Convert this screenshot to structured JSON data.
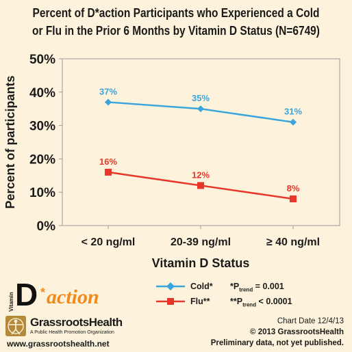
{
  "chart_data": {
    "type": "line",
    "title": "Percent of D*action Participants who Experienced a Cold or Flu in the Prior 6 Months by Vitamin D Status (N=6749)",
    "xlabel": "Vitamin D Status",
    "ylabel": "Percent of participants",
    "categories": [
      "< 20 ng/ml",
      "20-39 ng/ml",
      "≥ 40 ng/ml"
    ],
    "ylim": [
      0,
      50
    ],
    "yticks": [
      "0%",
      "10%",
      "20%",
      "30%",
      "40%",
      "50%"
    ],
    "series": [
      {
        "name": "Cold*",
        "values": [
          37,
          35,
          31
        ],
        "labels": [
          "37%",
          "35%",
          "31%"
        ],
        "color": "#3aa4dc",
        "marker": "diamond"
      },
      {
        "name": "Flu**",
        "values": [
          16,
          12,
          8
        ],
        "labels": [
          "16%",
          "12%",
          "8%"
        ],
        "color": "#e8362b",
        "marker": "square"
      }
    ],
    "grid": false,
    "legend": "bottom"
  },
  "legend": {
    "cold_label": "Cold*",
    "flu_label": "Flu**",
    "cold_p_prefix": "*P",
    "cold_p_sub": "trend",
    "cold_p_value": " = 0.001",
    "flu_p_prefix": "**P",
    "flu_p_sub": "trend",
    "flu_p_value": " < 0.0001"
  },
  "branding": {
    "vitamin": "Vitamin",
    "d_letter": "D",
    "star": "*",
    "action": "action",
    "org_name": "GrassrootsHealth",
    "org_tagline": "A Public Health Promotion Organization",
    "url": "www.grassrootshealth.net"
  },
  "credits": {
    "chart_date": "Chart Date 12/4/13",
    "copyright": "© 2013 GrassrootsHealth",
    "note": "Preliminary data, not yet published."
  }
}
